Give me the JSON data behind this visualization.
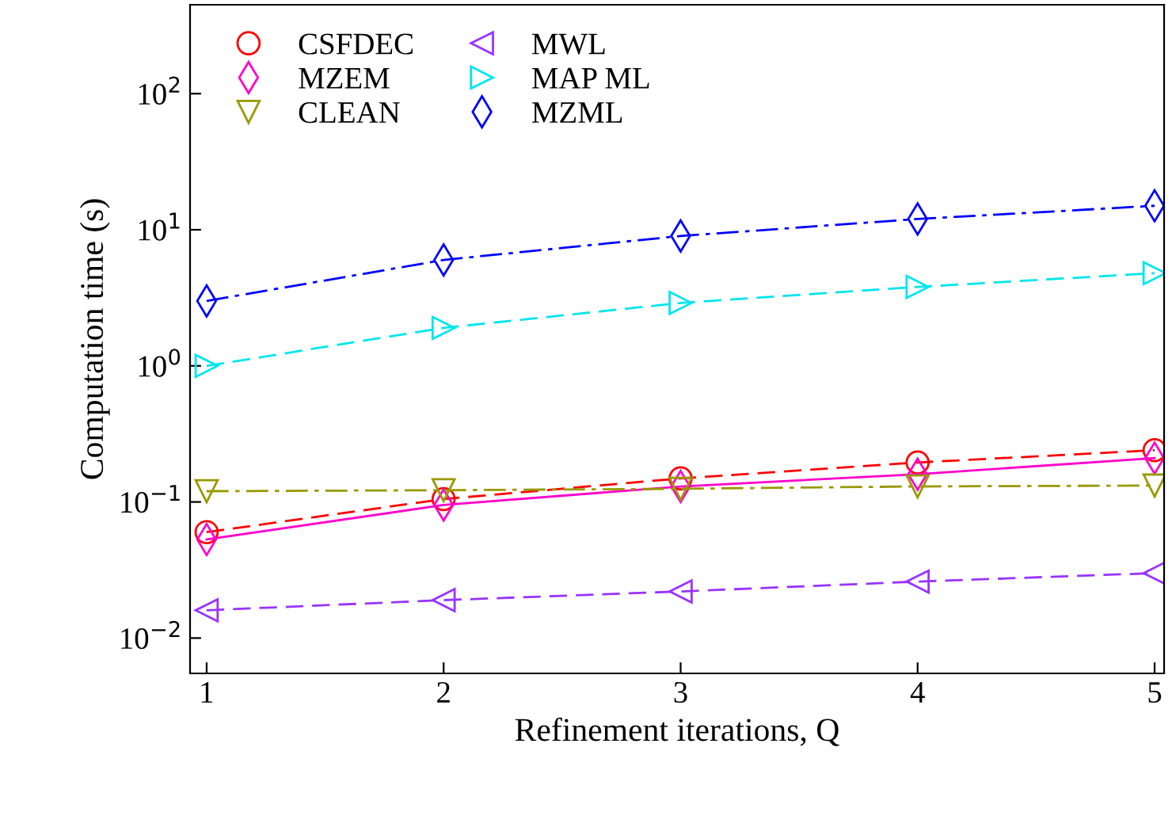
{
  "chart_data": {
    "type": "line",
    "xlabel": "Refinement iterations, Q",
    "ylabel": "Computation time (s)",
    "log": "y",
    "grid": false,
    "legend": "top left",
    "x": [
      1,
      2,
      3,
      4,
      5
    ],
    "xlim": [
      0.93,
      5.04
    ],
    "xticks": [
      1,
      2,
      3,
      4,
      5
    ],
    "ylim": [
      0.0055,
      450
    ],
    "yticks": [
      {
        "value": 0.01,
        "label": "10$^{−2}$"
      },
      {
        "value": 0.1,
        "label": "10$^{−1}$"
      },
      {
        "value": 1,
        "label": "10$^{0}$"
      },
      {
        "value": 10,
        "label": "10$^{1}$"
      },
      {
        "value": 100,
        "label": "10$^{2}$"
      }
    ],
    "series": [
      {
        "name": "CSFDEC",
        "color": "#ff0000",
        "marker": "circle",
        "line_style": "dashed",
        "values": [
          0.06,
          0.105,
          0.149,
          0.195,
          0.24
        ]
      },
      {
        "name": "MZEM",
        "color": "#ff00cc",
        "marker": "diamond",
        "line_style": "solid",
        "values": [
          0.053,
          0.095,
          0.13,
          0.16,
          0.21
        ]
      },
      {
        "name": "CLEAN",
        "color": "#999900",
        "marker": "triangle_down",
        "line_style": "dashdot",
        "values": [
          0.12,
          0.122,
          0.125,
          0.13,
          0.132
        ]
      },
      {
        "name": "MWL",
        "color": "#9933ff",
        "marker": "triangle_left",
        "line_style": "dashed",
        "values": [
          0.016,
          0.019,
          0.022,
          0.026,
          0.03
        ]
      },
      {
        "name": "MAP ML",
        "color": "#00e5ee",
        "marker": "triangle_right",
        "line_style": "dashed",
        "values": [
          1.0,
          1.9,
          2.9,
          3.8,
          4.8
        ]
      },
      {
        "name": "MZML",
        "color": "#0000ff",
        "marker": "diamond",
        "line_style": "dashdot",
        "values": [
          3,
          6,
          9,
          12,
          15
        ]
      }
    ]
  }
}
